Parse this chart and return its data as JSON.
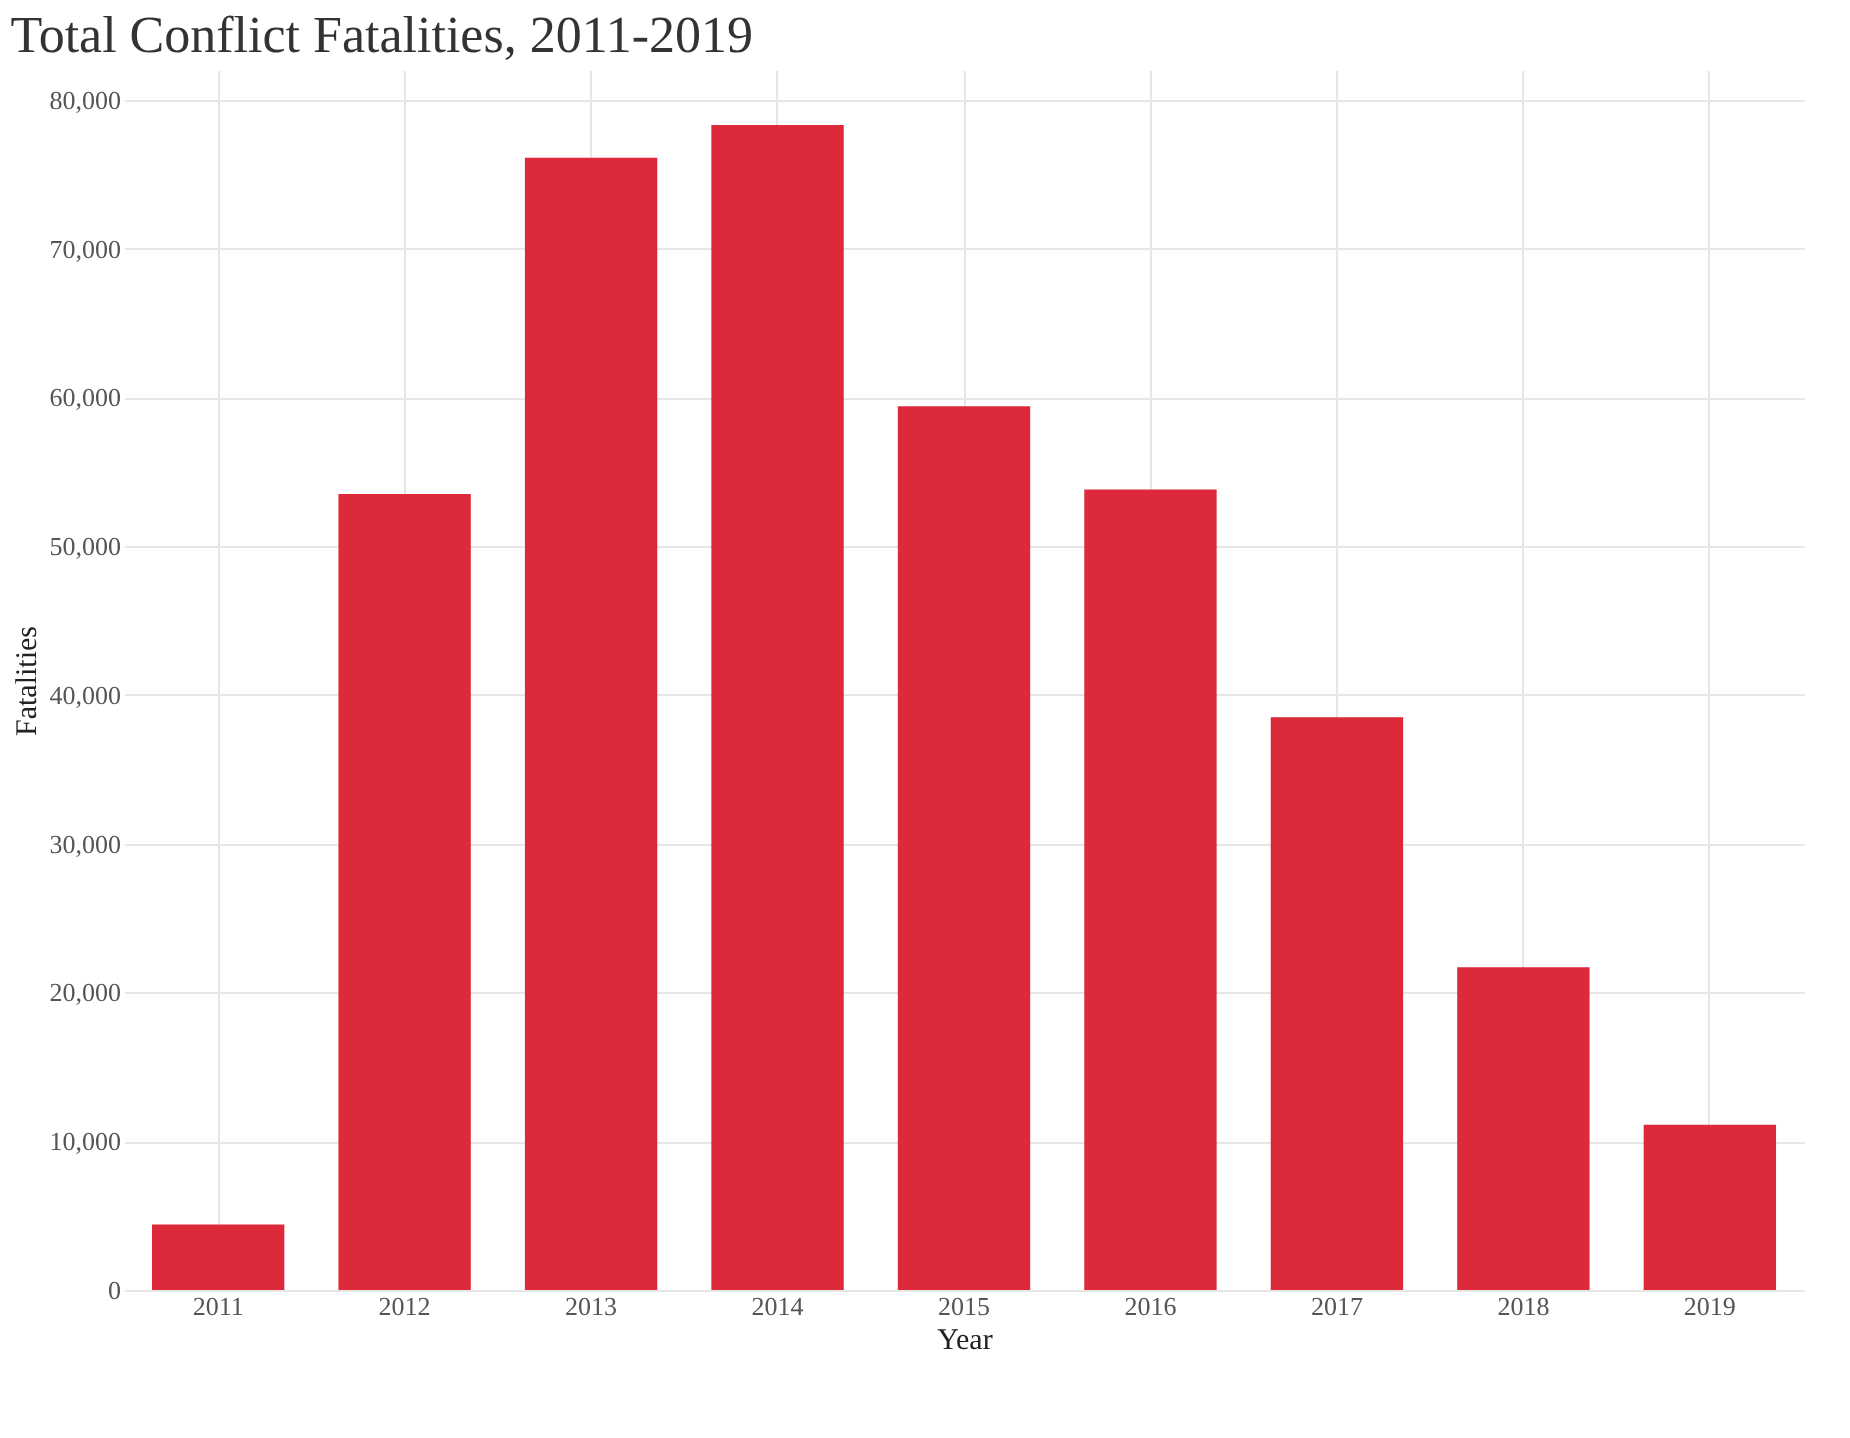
{
  "chart_data": {
    "type": "bar",
    "title": "Total Conflict Fatalities, 2011-2019",
    "xlabel": "Year",
    "ylabel": "Fatalities",
    "categories": [
      "2011",
      "2012",
      "2013",
      "2014",
      "2015",
      "2016",
      "2017",
      "2018",
      "2019"
    ],
    "values": [
      4400,
      53500,
      76100,
      78300,
      59400,
      53800,
      38500,
      21700,
      11100
    ],
    "color": "#dc2a3a",
    "ylim": [
      0,
      82000
    ],
    "yticks": [
      {
        "value": 0,
        "label": "0"
      },
      {
        "value": 10000,
        "label": "10,000"
      },
      {
        "value": 20000,
        "label": "20,000"
      },
      {
        "value": 30000,
        "label": "30,000"
      },
      {
        "value": 40000,
        "label": "40,000"
      },
      {
        "value": 50000,
        "label": "50,000"
      },
      {
        "value": 60000,
        "label": "60,000"
      },
      {
        "value": 70000,
        "label": "70,000"
      },
      {
        "value": 80000,
        "label": "80,000"
      }
    ],
    "grid": true
  }
}
